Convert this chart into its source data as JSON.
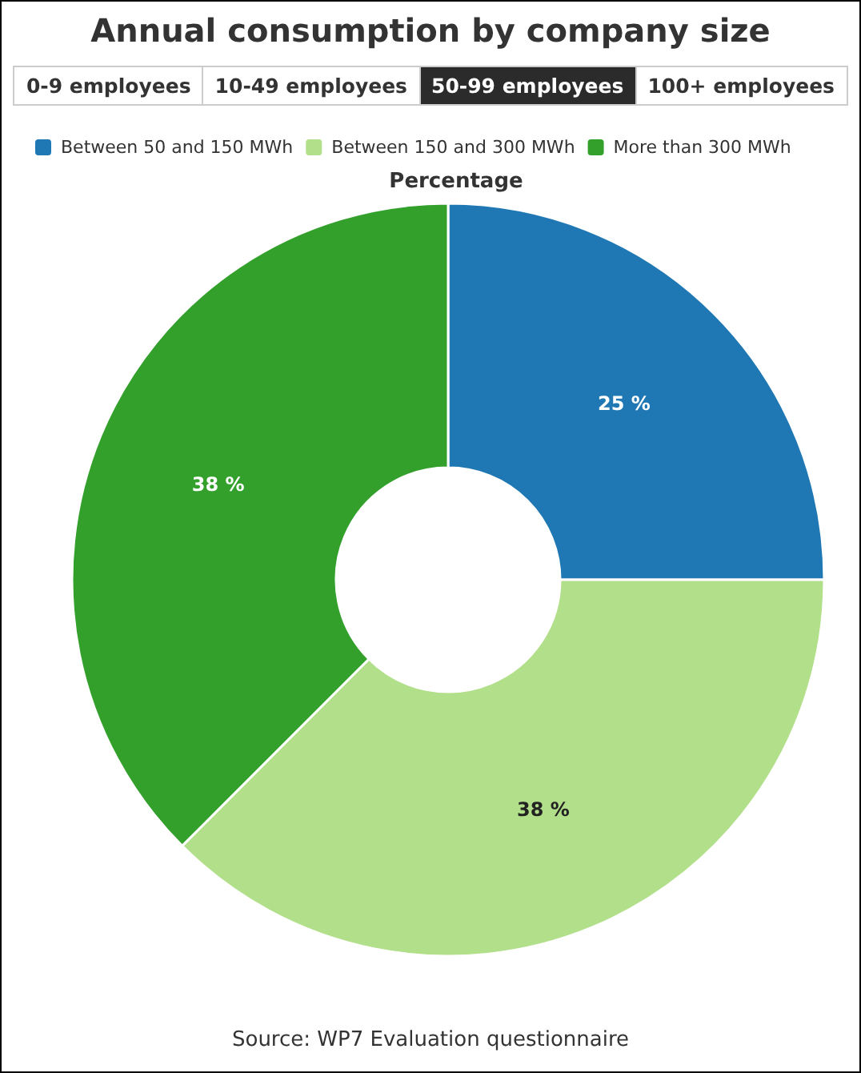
{
  "chart_data": {
    "type": "donut",
    "title": "Annual consumption by company size",
    "subtitle": "Percentage",
    "categories": [
      "Between 50 and 150 MWh",
      "Between 150 and 300 MWh",
      "More than 300 MWh"
    ],
    "values": [
      25,
      37.5,
      37.5
    ],
    "value_labels": [
      "25 %",
      "38 %",
      "38 %"
    ],
    "colors": [
      "#1f78b4",
      "#b2df8a",
      "#33a02c"
    ],
    "legend": "top left",
    "annotations": [
      "0-9 employees",
      "10-49 employees",
      "50-99 employees",
      "100+ employees",
      "Source: WP7 Evaluation questionnaire"
    ]
  }
}
